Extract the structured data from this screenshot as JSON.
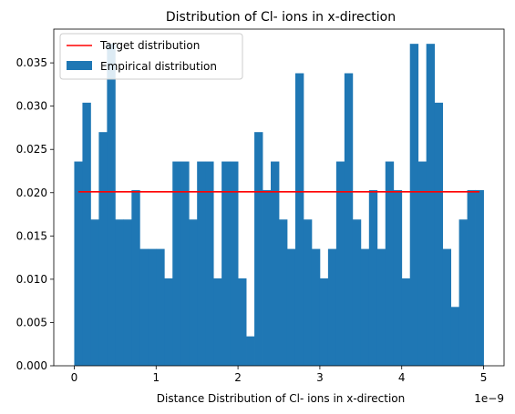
{
  "chart_data": {
    "type": "bar",
    "title": "Distribution of Cl- ions in x-direction",
    "xlabel": "Distance Distribution of Cl- ions in x-direction",
    "ylabel": "",
    "x_offset_label": "1e−9",
    "xlim": [
      -0.25,
      5.25
    ],
    "ylim": [
      0,
      0.0389
    ],
    "x_ticks": [
      0,
      1,
      2,
      3,
      4,
      5
    ],
    "x_tick_labels": [
      "0",
      "1",
      "2",
      "3",
      "4",
      "5"
    ],
    "y_ticks": [
      0.0,
      0.005,
      0.01,
      0.015,
      0.02,
      0.025,
      0.03,
      0.035
    ],
    "y_tick_labels": [
      "0.000",
      "0.005",
      "0.010",
      "0.015",
      "0.020",
      "0.025",
      "0.030",
      "0.035"
    ],
    "grid": false,
    "legend_position": "top-left",
    "bin_edges": [
      0.0,
      0.1,
      0.2,
      0.3,
      0.4,
      0.5,
      0.6,
      0.7,
      0.8,
      0.9,
      1.0,
      1.1,
      1.2,
      1.3,
      1.4,
      1.5,
      1.6,
      1.7,
      1.8,
      1.9,
      2.0,
      2.1,
      2.2,
      2.3,
      2.4,
      2.5,
      2.6,
      2.7,
      2.8,
      2.9,
      3.0,
      3.1,
      3.2,
      3.3,
      3.4,
      3.5,
      3.6,
      3.7,
      3.8,
      3.9,
      4.0,
      4.1,
      4.2,
      4.3,
      4.4,
      4.5,
      4.6,
      4.7,
      4.8,
      4.9,
      5.0
    ],
    "series": [
      {
        "name": "Empirical distribution",
        "kind": "histogram",
        "color": "#1f77b4",
        "values": [
          0.0236,
          0.0304,
          0.0169,
          0.027,
          0.0372,
          0.0169,
          0.0169,
          0.0203,
          0.0135,
          0.0135,
          0.0135,
          0.0101,
          0.0236,
          0.0236,
          0.0169,
          0.0236,
          0.0236,
          0.0101,
          0.0236,
          0.0236,
          0.0101,
          0.0034,
          0.027,
          0.0203,
          0.0236,
          0.0169,
          0.0135,
          0.0338,
          0.0169,
          0.0135,
          0.0101,
          0.0135,
          0.0236,
          0.0338,
          0.0169,
          0.0135,
          0.0203,
          0.0135,
          0.0236,
          0.0203,
          0.0101,
          0.0372,
          0.0236,
          0.0372,
          0.0304,
          0.0135,
          0.0068,
          0.0169,
          0.0203,
          0.0203
        ]
      },
      {
        "name": "Target distribution",
        "kind": "line",
        "color": "#ff0000",
        "x": [
          0.05,
          4.95
        ],
        "y": [
          0.0201,
          0.0201
        ]
      }
    ]
  }
}
